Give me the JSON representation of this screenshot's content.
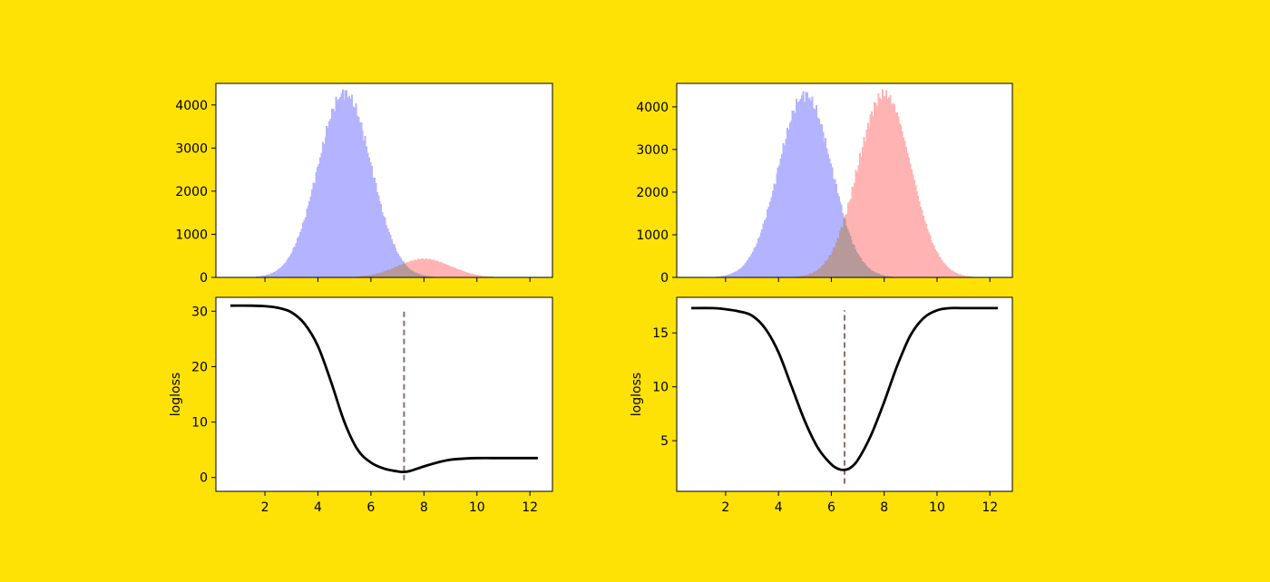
{
  "figure": {
    "background": "#FFE205"
  },
  "colors": {
    "blue_hist": "#B3B3FF",
    "red_hist": "#FFB3B3",
    "overlap": "#B7999A",
    "loss_line": "#000000",
    "threshold_line": "#8C6E6E"
  },
  "chart_data": [
    {
      "type": "bar",
      "panel": "top-left",
      "title": "",
      "xlabel": "",
      "ylabel": "",
      "xlim": [
        0.15,
        12.85
      ],
      "ylim": [
        0,
        4500
      ],
      "xticks": [
        2,
        4,
        6,
        8,
        10,
        12
      ],
      "xtick_labels": [
        "",
        "",
        "",
        "",
        "",
        ""
      ],
      "yticks": [
        0,
        1000,
        2000,
        3000,
        4000
      ],
      "ytick_labels": [
        "0",
        "1000",
        "2000",
        "3000",
        "4000"
      ],
      "grid": false,
      "bins": {
        "start": 0.7,
        "end": 12.3,
        "count": 232
      },
      "series": [
        {
          "distribution": "normal",
          "mean": 5.0,
          "sd": 1.0,
          "peak": 4280,
          "color": "#B3B3FF"
        },
        {
          "distribution": "normal",
          "mean": 8.0,
          "sd": 1.0,
          "peak": 430,
          "color": "#FFB3B3"
        }
      ]
    },
    {
      "type": "line",
      "panel": "bottom-left",
      "title": "",
      "xlabel": "",
      "ylabel": "logloss",
      "xlim": [
        0.15,
        12.85
      ],
      "ylim": [
        -2.5,
        32.5
      ],
      "xticks": [
        2,
        4,
        6,
        8,
        10,
        12
      ],
      "xtick_labels": [
        "2",
        "4",
        "6",
        "8",
        "10",
        "12"
      ],
      "yticks": [
        0,
        10,
        20,
        30
      ],
      "ytick_labels": [
        "0",
        "10",
        "20",
        "30"
      ],
      "grid": false,
      "series": [
        {
          "x": [
            0.7,
            1.5,
            2.0,
            2.5,
            3.0,
            3.5,
            4.0,
            4.5,
            5.0,
            5.5,
            6.0,
            6.5,
            7.0,
            7.25,
            7.5,
            8.0,
            8.5,
            9.0,
            9.5,
            10.0,
            11.0,
            12.3
          ],
          "y": [
            31.0,
            31.0,
            30.9,
            30.6,
            29.8,
            27.7,
            23.7,
            17.2,
            10.0,
            5.0,
            2.7,
            1.6,
            1.1,
            1.0,
            1.2,
            2.0,
            2.7,
            3.2,
            3.4,
            3.5,
            3.5,
            3.5
          ],
          "color": "#000000"
        }
      ],
      "vline": {
        "x": 7.25,
        "ymin": -0.5,
        "ymax": 30.1,
        "color": "#8C6E6E",
        "style": "dashed"
      }
    },
    {
      "type": "bar",
      "panel": "top-right",
      "title": "",
      "xlabel": "",
      "ylabel": "",
      "xlim": [
        0.15,
        12.85
      ],
      "ylim": [
        0,
        4550
      ],
      "xticks": [
        2,
        4,
        6,
        8,
        10,
        12
      ],
      "xtick_labels": [
        "",
        "",
        "",
        "",
        "",
        ""
      ],
      "yticks": [
        0,
        1000,
        2000,
        3000,
        4000
      ],
      "ytick_labels": [
        "0",
        "1000",
        "2000",
        "3000",
        "4000"
      ],
      "grid": false,
      "bins": {
        "start": 0.7,
        "end": 12.3,
        "count": 232
      },
      "series": [
        {
          "distribution": "normal",
          "mean": 5.0,
          "sd": 1.0,
          "peak": 4280,
          "color": "#B3B3FF"
        },
        {
          "distribution": "normal",
          "mean": 8.0,
          "sd": 1.0,
          "peak": 4300,
          "color": "#FFB3B3"
        }
      ]
    },
    {
      "type": "line",
      "panel": "bottom-right",
      "title": "",
      "xlabel": "",
      "ylabel": "logloss",
      "xlim": [
        0.15,
        12.85
      ],
      "ylim": [
        0.3,
        18.3
      ],
      "xticks": [
        2,
        4,
        6,
        8,
        10,
        12
      ],
      "xtick_labels": [
        "2",
        "4",
        "6",
        "8",
        "10",
        "12"
      ],
      "yticks": [
        5,
        10,
        15
      ],
      "ytick_labels": [
        "5",
        "10",
        "15"
      ],
      "grid": false,
      "series": [
        {
          "x": [
            0.7,
            1.5,
            2.0,
            2.5,
            3.0,
            3.5,
            4.0,
            4.5,
            5.0,
            5.5,
            6.0,
            6.3,
            6.5,
            6.7,
            7.0,
            7.5,
            8.0,
            8.5,
            9.0,
            9.5,
            10.0,
            10.5,
            11.0,
            12.3
          ],
          "y": [
            17.3,
            17.3,
            17.2,
            17.0,
            16.6,
            15.4,
            13.2,
            10.0,
            6.8,
            4.3,
            2.8,
            2.35,
            2.3,
            2.45,
            3.2,
            5.5,
            8.6,
            12.0,
            14.8,
            16.4,
            17.1,
            17.3,
            17.3,
            17.3
          ],
          "color": "#000000"
        }
      ],
      "vline": {
        "x": 6.5,
        "ymin": 1.0,
        "ymax": 17.1,
        "color": "#8C6E6E",
        "style": "dashed"
      }
    }
  ]
}
